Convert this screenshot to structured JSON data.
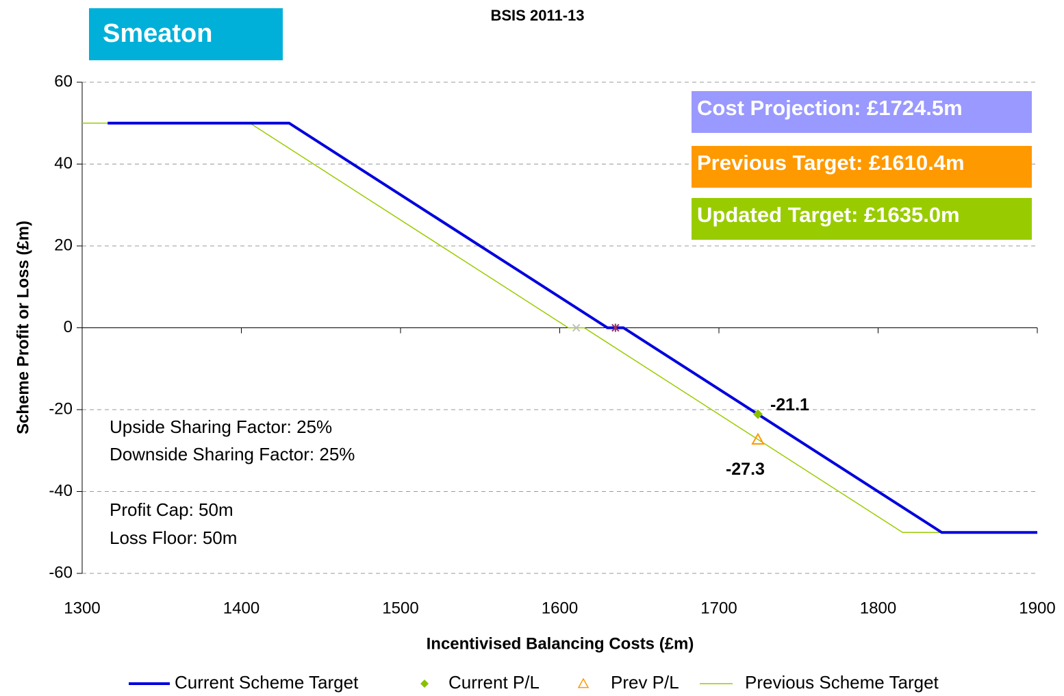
{
  "chart_data": {
    "type": "line",
    "title": "BSIS 2011-13",
    "badge": "Smeaton",
    "x_label": "Incentivised Balancing Costs (£m)",
    "y_label": "Scheme Profit or Loss (£m)",
    "xlim": [
      1300,
      1900
    ],
    "xticks": [
      1300,
      1400,
      1500,
      1600,
      1700,
      1800,
      1900
    ],
    "ylim": [
      -60,
      60
    ],
    "yticks": [
      -60,
      -40,
      -20,
      0,
      20,
      40,
      60
    ],
    "grid": true,
    "series": [
      {
        "name": "Current Scheme Target",
        "kind": "line",
        "color": "#0000dd",
        "width": 4,
        "x": [
          1316,
          1430,
          1630,
          1640,
          1840,
          1900
        ],
        "values": [
          50,
          50,
          0,
          0,
          -50,
          -50
        ]
      },
      {
        "name": "Current P/L",
        "kind": "diamond",
        "color": "#88c000",
        "x": [
          1724.5
        ],
        "values": [
          -21.1
        ]
      },
      {
        "name": "Prev P/L",
        "kind": "triangle",
        "color": "#ff9900",
        "x": [
          1724.5
        ],
        "values": [
          -27.3
        ]
      },
      {
        "name": "Previous Scheme Target",
        "kind": "line",
        "color": "#99cc00",
        "width": 1.5,
        "x": [
          1300,
          1405.4,
          1605.4,
          1615.4,
          1815.4,
          1900
        ],
        "values": [
          50,
          50,
          0,
          0,
          -50,
          -50
        ]
      }
    ],
    "markers": [
      {
        "x": 1610.4,
        "y": 0,
        "symbol": "x",
        "color": "#c0c0c0"
      },
      {
        "x": 1635,
        "y": 0,
        "symbol": "star",
        "color": "#993366"
      }
    ],
    "info_boxes": [
      {
        "text": "Cost Projection: £1724.5m",
        "color": "#9999ff"
      },
      {
        "text": "Previous Target: £1610.4m",
        "color": "#ff9900"
      },
      {
        "text": "Updated Target: £1635.0m",
        "color": "#99cc00"
      }
    ],
    "notes": [
      "Upside Sharing Factor: 25%",
      "Downside Sharing Factor: 25%",
      "Profit Cap: 50m",
      "Loss Floor: 50m"
    ]
  }
}
